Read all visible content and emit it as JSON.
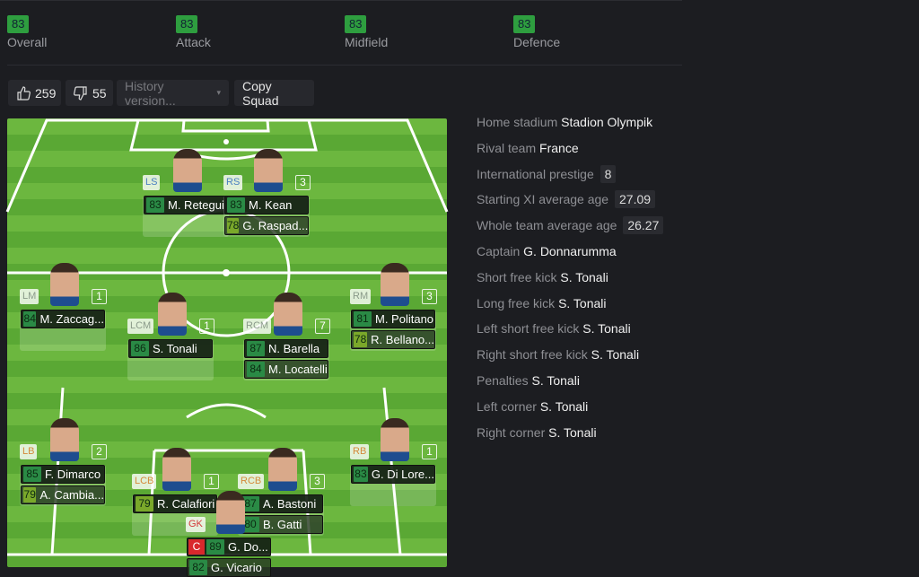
{
  "ratings": [
    {
      "label": "Overall",
      "value": "83"
    },
    {
      "label": "Attack",
      "value": "83"
    },
    {
      "label": "Midfield",
      "value": "83"
    },
    {
      "label": "Defence",
      "value": "83"
    }
  ],
  "toolbar": {
    "likes": "259",
    "dislikes": "55",
    "history_placeholder": "History version...",
    "copy_label": "Copy Squad"
  },
  "colors": {
    "rating_high": "#2a8a45",
    "rating_mid": "#7aa82a",
    "attack_pos": "#4a7fc1",
    "mid_pos": "#8a9a8a",
    "def_pos": "#d48a3a",
    "gk_pos": "#d33a3a",
    "captain": "#d9282c"
  },
  "players": [
    {
      "pos": "LS",
      "number": "",
      "rating": "83",
      "name": "M. Retegui",
      "subs": []
    },
    {
      "pos": "RS",
      "number": "3",
      "rating": "83",
      "name": "M. Kean",
      "subs": [
        {
          "rating": "78",
          "name": "G. Raspad..."
        }
      ]
    },
    {
      "pos": "LM",
      "number": "1",
      "rating": "84",
      "name": "M. Zaccag...",
      "subs": []
    },
    {
      "pos": "LCM",
      "number": "1",
      "rating": "86",
      "name": "S. Tonali",
      "subs": []
    },
    {
      "pos": "RCM",
      "number": "7",
      "rating": "87",
      "name": "N. Barella",
      "subs": [
        {
          "rating": "84",
          "name": "M. Locatelli"
        }
      ]
    },
    {
      "pos": "RM",
      "number": "3",
      "rating": "81",
      "name": "M. Politano",
      "subs": [
        {
          "rating": "78",
          "name": "R. Bellano..."
        }
      ]
    },
    {
      "pos": "LB",
      "number": "2",
      "rating": "85",
      "name": "F. Dimarco",
      "subs": [
        {
          "rating": "79",
          "name": "A. Cambia..."
        }
      ]
    },
    {
      "pos": "LCB",
      "number": "1",
      "rating": "79",
      "name": "R. Calafiori",
      "subs": []
    },
    {
      "pos": "RCB",
      "number": "3",
      "rating": "87",
      "name": "A. Bastoni",
      "subs": [
        {
          "rating": "80",
          "name": "B. Gatti"
        }
      ]
    },
    {
      "pos": "RB",
      "number": "1",
      "rating": "83",
      "name": "G. Di Lore...",
      "subs": []
    },
    {
      "pos": "GK",
      "number": "",
      "rating": "89",
      "name": "G. Do...",
      "captain": "C",
      "subs": [
        {
          "rating": "82",
          "name": "G. Vicario"
        }
      ]
    }
  ],
  "info": [
    {
      "label": "Home stadium",
      "value": "Stadion Olympik"
    },
    {
      "label": "Rival team",
      "value": "France"
    },
    {
      "label": "International prestige",
      "chip": "8"
    },
    {
      "label": "Starting XI average age",
      "chip": "27.09"
    },
    {
      "label": "Whole team average age",
      "chip": "26.27"
    },
    {
      "label": "Captain",
      "value": "G. Donnarumma"
    },
    {
      "label": "Short free kick",
      "value": "S. Tonali"
    },
    {
      "label": "Long free kick",
      "value": "S. Tonali"
    },
    {
      "label": "Left short free kick",
      "value": "S. Tonali"
    },
    {
      "label": "Right short free kick",
      "value": "S. Tonali"
    },
    {
      "label": "Penalties",
      "value": "S. Tonali"
    },
    {
      "label": "Left corner",
      "value": "S. Tonali"
    },
    {
      "label": "Right corner",
      "value": "S. Tonali"
    }
  ]
}
